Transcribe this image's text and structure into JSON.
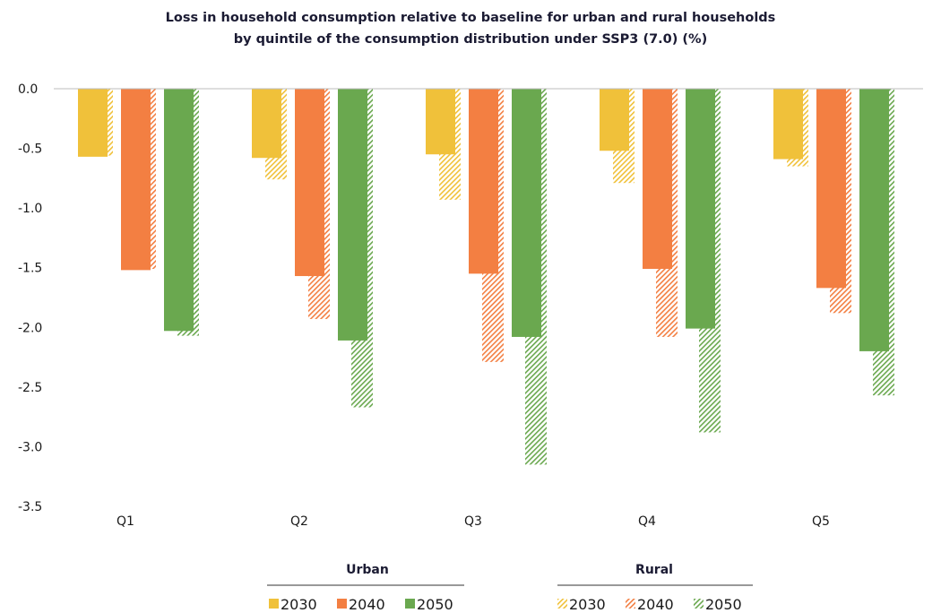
{
  "chart_data": {
    "type": "bar",
    "title_line1": "Loss in household consumption relative to baseline for urban and rural households",
    "title_line2": "by quintile of the consumption distribution under SSP3 (7.0) (%)",
    "categories": [
      "Q1",
      "Q2",
      "Q3",
      "Q4",
      "Q5"
    ],
    "ylim": [
      -3.5,
      0.0
    ],
    "yticks": [
      0.0,
      -0.5,
      -1.0,
      -1.5,
      -2.0,
      -2.5,
      -3.0,
      -3.5
    ],
    "ytick_labels": [
      "0.0",
      "-0.5",
      "-1.0",
      "-1.5",
      "-2.0",
      "-2.5",
      "-3.0",
      "-3.5"
    ],
    "grid": false,
    "legend_position": "bottom",
    "legend_groups": [
      {
        "title": "Urban",
        "style": "solid",
        "entries": [
          "2030",
          "2040",
          "2050"
        ]
      },
      {
        "title": "Rural",
        "style": "hatched",
        "entries": [
          "2030",
          "2040",
          "2050"
        ]
      }
    ],
    "years": [
      "2030",
      "2040",
      "2050"
    ],
    "colors": {
      "2030": "#f0c13a",
      "2040": "#f37f42",
      "2050": "#6aa84f"
    },
    "series": [
      {
        "group": "Urban",
        "year": "2030",
        "values": [
          -0.57,
          -0.58,
          -0.55,
          -0.52,
          -0.59
        ]
      },
      {
        "group": "Urban",
        "year": "2040",
        "values": [
          -1.52,
          -1.57,
          -1.55,
          -1.51,
          -1.67
        ]
      },
      {
        "group": "Urban",
        "year": "2050",
        "values": [
          -2.03,
          -2.11,
          -2.08,
          -2.01,
          -2.2
        ]
      },
      {
        "group": "Rural",
        "year": "2030",
        "values": [
          -0.56,
          -0.76,
          -0.93,
          -0.79,
          -0.65
        ]
      },
      {
        "group": "Rural",
        "year": "2040",
        "values": [
          -1.51,
          -1.93,
          -2.29,
          -2.08,
          -1.88
        ]
      },
      {
        "group": "Rural",
        "year": "2050",
        "values": [
          -2.07,
          -2.67,
          -3.15,
          -2.88,
          -2.57
        ]
      }
    ]
  }
}
